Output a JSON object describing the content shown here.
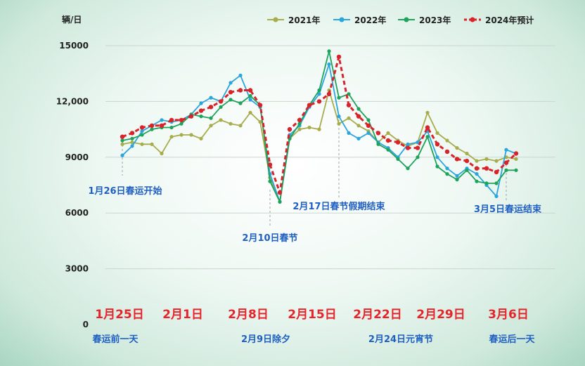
{
  "chart_data": {
    "type": "line",
    "ylabel": "辆/日",
    "ylim": [
      0,
      15000
    ],
    "yticks": [
      "0",
      "3000",
      "6000",
      "9000",
      "12,000",
      "15000"
    ],
    "ytick_values": [
      0,
      3000,
      6000,
      9000,
      12000,
      15000
    ],
    "xlabels": [
      "1月25日",
      "2月1日",
      "2月8日",
      "2月15日",
      "2月22日",
      "2月29日",
      "3月6日"
    ],
    "xlabel_days": [
      0,
      7,
      14,
      21,
      28,
      35,
      41
    ],
    "day_range": [
      0,
      41
    ],
    "annotations_top": [
      {
        "text": "1月26日春运开始",
        "day": 1
      },
      {
        "text": "2月10日春节",
        "day": 16
      },
      {
        "text": "2月17日春节假期结束",
        "day": 23
      },
      {
        "text": "3月5日春运结束",
        "day": 40
      }
    ],
    "annotations_bottom": [
      {
        "text": "春运前一天",
        "day": 0
      },
      {
        "text": "2月9日除夕",
        "day": 15
      },
      {
        "text": "2月24日元宵节",
        "day": 30
      },
      {
        "text": "春运后一天",
        "day": 41
      }
    ],
    "legend_position": "top-right",
    "grid": "horizontal",
    "series": [
      {
        "name": "2021年",
        "color": "#a8ad4c",
        "style": "solid",
        "points": [
          [
            1,
            9700
          ],
          [
            2,
            9800
          ],
          [
            3,
            9700
          ],
          [
            4,
            9700
          ],
          [
            5,
            9200
          ],
          [
            6,
            10100
          ],
          [
            7,
            10200
          ],
          [
            8,
            10200
          ],
          [
            9,
            10000
          ],
          [
            10,
            10700
          ],
          [
            11,
            11000
          ],
          [
            12,
            10800
          ],
          [
            13,
            10700
          ],
          [
            14,
            11400
          ],
          [
            15,
            10900
          ],
          [
            16,
            7900
          ],
          [
            17,
            6600
          ],
          [
            18,
            10000
          ],
          [
            19,
            10500
          ],
          [
            20,
            10600
          ],
          [
            21,
            10500
          ],
          [
            22,
            12600
          ],
          [
            23,
            10800
          ],
          [
            24,
            11100
          ],
          [
            25,
            10700
          ],
          [
            26,
            10400
          ],
          [
            27,
            9800
          ],
          [
            28,
            10300
          ],
          [
            29,
            9900
          ],
          [
            30,
            9600
          ],
          [
            31,
            9800
          ],
          [
            32,
            11400
          ],
          [
            33,
            10300
          ],
          [
            34,
            9900
          ],
          [
            35,
            9500
          ],
          [
            36,
            9200
          ],
          [
            37,
            8800
          ],
          [
            38,
            8900
          ],
          [
            39,
            8800
          ],
          [
            40,
            9000
          ],
          [
            41,
            8900
          ]
        ]
      },
      {
        "name": "2022年",
        "color": "#2aa5dd",
        "style": "solid",
        "points": [
          [
            1,
            9100
          ],
          [
            2,
            9600
          ],
          [
            3,
            10400
          ],
          [
            4,
            10700
          ],
          [
            5,
            11000
          ],
          [
            6,
            10900
          ],
          [
            7,
            11000
          ],
          [
            8,
            11300
          ],
          [
            9,
            11900
          ],
          [
            10,
            12200
          ],
          [
            11,
            12000
          ],
          [
            12,
            13000
          ],
          [
            13,
            13400
          ],
          [
            14,
            12100
          ],
          [
            15,
            11700
          ],
          [
            16,
            8100
          ],
          [
            17,
            6600
          ],
          [
            18,
            10200
          ],
          [
            19,
            10700
          ],
          [
            20,
            11700
          ],
          [
            21,
            12400
          ],
          [
            22,
            14000
          ],
          [
            23,
            11200
          ],
          [
            24,
            10300
          ],
          [
            25,
            10000
          ],
          [
            26,
            10300
          ],
          [
            27,
            9800
          ],
          [
            28,
            9500
          ],
          [
            29,
            9000
          ],
          [
            30,
            9700
          ],
          [
            31,
            9800
          ],
          [
            32,
            10400
          ],
          [
            33,
            9000
          ],
          [
            34,
            8400
          ],
          [
            35,
            8000
          ],
          [
            36,
            8400
          ],
          [
            37,
            8100
          ],
          [
            38,
            7500
          ],
          [
            39,
            6900
          ],
          [
            40,
            9400
          ],
          [
            41,
            9200
          ]
        ]
      },
      {
        "name": "2023年",
        "color": "#1ea35b",
        "style": "solid",
        "points": [
          [
            1,
            9900
          ],
          [
            2,
            10000
          ],
          [
            3,
            10200
          ],
          [
            4,
            10500
          ],
          [
            5,
            10600
          ],
          [
            6,
            10600
          ],
          [
            7,
            10800
          ],
          [
            8,
            11300
          ],
          [
            9,
            11200
          ],
          [
            10,
            11100
          ],
          [
            11,
            11700
          ],
          [
            12,
            12100
          ],
          [
            13,
            11900
          ],
          [
            14,
            12300
          ],
          [
            15,
            11800
          ],
          [
            16,
            7700
          ],
          [
            17,
            6600
          ],
          [
            18,
            10000
          ],
          [
            19,
            10800
          ],
          [
            20,
            11800
          ],
          [
            21,
            12600
          ],
          [
            22,
            14700
          ],
          [
            23,
            12200
          ],
          [
            24,
            12400
          ],
          [
            25,
            11600
          ],
          [
            26,
            11000
          ],
          [
            27,
            9700
          ],
          [
            28,
            9400
          ],
          [
            29,
            8900
          ],
          [
            30,
            8400
          ],
          [
            31,
            9000
          ],
          [
            32,
            10100
          ],
          [
            33,
            8500
          ],
          [
            34,
            8100
          ],
          [
            35,
            7800
          ],
          [
            36,
            8300
          ],
          [
            37,
            7700
          ],
          [
            38,
            7600
          ],
          [
            39,
            7600
          ],
          [
            40,
            8300
          ],
          [
            41,
            8300
          ]
        ]
      },
      {
        "name": "2024年预计",
        "color": "#d9232a",
        "style": "dashed",
        "points": [
          [
            1,
            10100
          ],
          [
            2,
            10300
          ],
          [
            3,
            10600
          ],
          [
            4,
            10700
          ],
          [
            5,
            10700
          ],
          [
            6,
            11000
          ],
          [
            7,
            11000
          ],
          [
            8,
            11200
          ],
          [
            9,
            11500
          ],
          [
            10,
            11700
          ],
          [
            11,
            12000
          ],
          [
            12,
            12500
          ],
          [
            13,
            12600
          ],
          [
            14,
            12600
          ],
          [
            15,
            11800
          ],
          [
            16,
            8600
          ],
          [
            17,
            7100
          ],
          [
            18,
            10500
          ],
          [
            19,
            11000
          ],
          [
            20,
            11800
          ],
          [
            21,
            12000
          ],
          [
            22,
            12400
          ],
          [
            23,
            14400
          ],
          [
            24,
            11800
          ],
          [
            25,
            11200
          ],
          [
            26,
            10700
          ],
          [
            27,
            10300
          ],
          [
            28,
            9900
          ],
          [
            29,
            9800
          ],
          [
            30,
            9500
          ],
          [
            31,
            9500
          ],
          [
            32,
            10600
          ],
          [
            33,
            9700
          ],
          [
            34,
            9300
          ],
          [
            35,
            8900
          ],
          [
            36,
            8800
          ],
          [
            37,
            8400
          ],
          [
            38,
            8400
          ],
          [
            39,
            8200
          ],
          [
            40,
            8700
          ],
          [
            41,
            9200
          ]
        ]
      }
    ]
  }
}
